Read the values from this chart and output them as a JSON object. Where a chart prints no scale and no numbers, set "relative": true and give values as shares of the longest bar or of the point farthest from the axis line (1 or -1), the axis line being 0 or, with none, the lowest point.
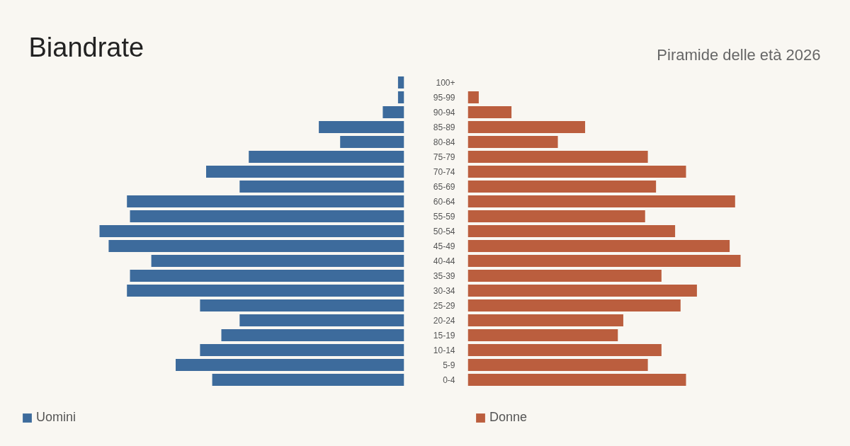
{
  "chart_data": [
    {
      "type": "bar",
      "orientation": "horizontal",
      "relative": true,
      "title": "Biandrate",
      "tick_labels": false,
      "categories": [
        "100+",
        "95-99",
        "90-94",
        "85-89",
        "80-84",
        "75-79",
        "70-74",
        "65-69",
        "60-64",
        "55-59",
        "50-54",
        "45-49",
        "40-44",
        "35-39",
        "30-34",
        "25-29",
        "20-24",
        "15-19",
        "10-14",
        "5-9",
        "0-4"
      ],
      "series": [
        {
          "name": "Uomini",
          "color": "#3d6b9c",
          "values": [
            -0.02,
            -0.02,
            -0.07,
            -0.28,
            -0.21,
            -0.51,
            -0.65,
            -0.54,
            -0.91,
            -0.9,
            -1,
            -0.97,
            -0.83,
            -0.9,
            -0.91,
            -0.67,
            -0.54,
            -0.6,
            -0.67,
            -0.75,
            -0.63
          ]
        }
      ],
      "legend": "bottom left"
    },
    {
      "type": "bar",
      "orientation": "horizontal",
      "relative": true,
      "subtitle": "Piramide delle età 2026",
      "categories": [
        "100+",
        "95-99",
        "90-94",
        "85-89",
        "80-84",
        "75-79",
        "70-74",
        "65-69",
        "60-64",
        "55-59",
        "50-54",
        "45-49",
        "40-44",
        "35-39",
        "30-34",
        "25-29",
        "20-24",
        "15-19",
        "10-14",
        "5-9",
        "0-4"
      ],
      "series": [
        {
          "name": "Donne",
          "color": "#bb5e3e",
          "values": [
            0,
            0.04,
            0.16,
            0.43,
            0.33,
            0.66,
            0.8,
            0.69,
            0.98,
            0.65,
            0.76,
            0.96,
            1,
            0.71,
            0.84,
            0.78,
            0.57,
            0.55,
            0.71,
            0.66,
            0.8
          ]
        }
      ],
      "legend": "bottom left"
    }
  ]
}
